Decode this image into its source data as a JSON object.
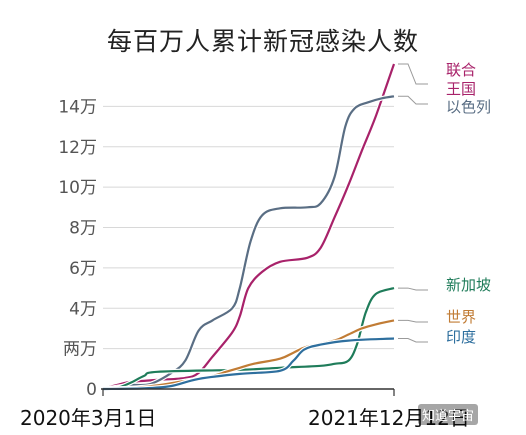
{
  "chart_data": {
    "type": "line",
    "title": "每百万人累计新冠感染人数",
    "x_start_label": "2020年3月1日",
    "x_end_label": "2021年12月12日",
    "xlim": [
      "2020-03-01",
      "2021-12-12"
    ],
    "ylim": [
      0,
      160000
    ],
    "y_ticks": [
      {
        "value": 0,
        "label": "0"
      },
      {
        "value": 20000,
        "label": "两万"
      },
      {
        "value": 40000,
        "label": "4万"
      },
      {
        "value": 60000,
        "label": "6万"
      },
      {
        "value": 80000,
        "label": "8万"
      },
      {
        "value": 100000,
        "label": "10万"
      },
      {
        "value": 120000,
        "label": "12万"
      },
      {
        "value": 140000,
        "label": "14万"
      }
    ],
    "grid": true,
    "series": [
      {
        "name": "联合\n王国",
        "color": "#a8226a",
        "x": [
          "2020-03-01",
          "2020-04-01",
          "2020-05-01",
          "2020-07-01",
          "2020-09-01",
          "2020-10-01",
          "2020-11-01",
          "2020-12-15",
          "2021-01-01",
          "2021-01-20",
          "2021-02-20",
          "2021-04-01",
          "2021-06-01",
          "2021-07-01",
          "2021-08-01",
          "2021-09-01",
          "2021-10-01",
          "2021-11-01",
          "2021-12-12"
        ],
        "y": [
          0,
          2000,
          3500,
          4500,
          5500,
          8000,
          16000,
          28000,
          36000,
          50000,
          58000,
          63000,
          65000,
          70000,
          85000,
          101000,
          118000,
          135000,
          161000
        ]
      },
      {
        "name": "以色列",
        "color": "#5a6e84",
        "x": [
          "2020-03-01",
          "2020-04-01",
          "2020-05-01",
          "2020-06-15",
          "2020-08-01",
          "2020-09-01",
          "2020-10-01",
          "2020-11-01",
          "2020-12-15",
          "2021-01-01",
          "2021-01-25",
          "2021-02-20",
          "2021-04-01",
          "2021-06-01",
          "2021-07-01",
          "2021-08-01",
          "2021-08-25",
          "2021-09-15",
          "2021-10-15",
          "2021-11-15",
          "2021-12-12"
        ],
        "y": [
          0,
          1000,
          2000,
          2500,
          8000,
          14000,
          29000,
          34000,
          40000,
          50000,
          73000,
          86000,
          89500,
          90000,
          92000,
          105000,
          130000,
          139000,
          142000,
          144000,
          145000
        ]
      },
      {
        "name": "新加坡",
        "color": "#1f7c5a",
        "x": [
          "2020-03-01",
          "2020-04-01",
          "2020-05-01",
          "2020-06-01",
          "2020-07-01",
          "2021-01-01",
          "2021-04-01",
          "2021-07-01",
          "2021-08-01",
          "2021-09-01",
          "2021-09-20",
          "2021-10-10",
          "2021-11-01",
          "2021-12-12"
        ],
        "y": [
          0,
          500,
          3000,
          6500,
          8500,
          9500,
          10500,
          11500,
          12500,
          14000,
          22000,
          38000,
          47000,
          50000
        ]
      },
      {
        "name": "世界",
        "color": "#c17c35",
        "x": [
          "2020-03-01",
          "2020-06-01",
          "2020-09-01",
          "2020-11-01",
          "2020-12-01",
          "2021-01-01",
          "2021-02-01",
          "2021-04-01",
          "2021-05-01",
          "2021-06-01",
          "2021-08-01",
          "2021-09-01",
          "2021-10-01",
          "2021-11-01",
          "2021-12-12"
        ],
        "y": [
          0,
          1000,
          4000,
          6500,
          8500,
          10500,
          12500,
          15000,
          18000,
          21000,
          24000,
          27000,
          30000,
          32000,
          34000
        ]
      },
      {
        "name": "印度",
        "color": "#2e6f9e",
        "x": [
          "2020-03-01",
          "2020-06-01",
          "2020-08-01",
          "2020-10-01",
          "2021-01-01",
          "2021-04-01",
          "2021-05-01",
          "2021-05-25",
          "2021-07-01",
          "2021-09-01",
          "2021-12-12"
        ],
        "y": [
          0,
          300,
          1500,
          5000,
          7500,
          9000,
          14000,
          19500,
          22000,
          24000,
          25000
        ]
      }
    ]
  },
  "watermark": "知道宇宙"
}
